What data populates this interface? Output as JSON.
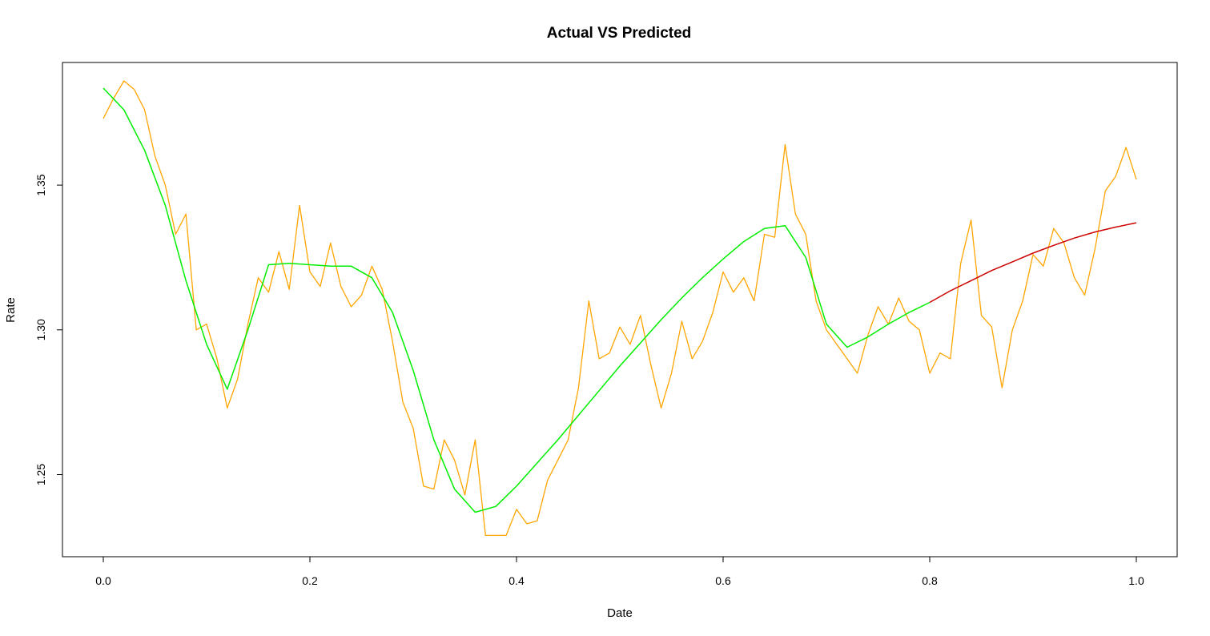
{
  "chart_data": {
    "type": "line",
    "title": "Actual VS Predicted",
    "xlabel": "Date",
    "ylabel": "Rate",
    "xlim": [
      0.0,
      1.0
    ],
    "ylim": [
      1.228,
      1.386
    ],
    "x_ticks": [
      "0.0",
      "0.2",
      "0.4",
      "0.6",
      "0.8",
      "1.0"
    ],
    "y_ticks": [
      "1.25",
      "1.30",
      "1.35"
    ],
    "grid": false,
    "legend": "none",
    "colors": {
      "actual": "#FFA500",
      "fitted": "#00EE00",
      "predicted": "#CC0000"
    },
    "series": [
      {
        "role": "actual",
        "x": [
          0.0,
          0.01,
          0.02,
          0.03,
          0.04,
          0.05,
          0.06,
          0.07,
          0.08,
          0.09,
          0.1,
          0.11,
          0.12,
          0.13,
          0.14,
          0.15,
          0.16,
          0.17,
          0.18,
          0.19,
          0.2,
          0.21,
          0.22,
          0.23,
          0.24,
          0.25,
          0.26,
          0.27,
          0.28,
          0.29,
          0.3,
          0.31,
          0.32,
          0.33,
          0.34,
          0.35,
          0.36,
          0.37,
          0.38,
          0.39,
          0.4,
          0.41,
          0.42,
          0.43,
          0.44,
          0.45,
          0.46,
          0.47,
          0.48,
          0.49,
          0.5,
          0.51,
          0.52,
          0.53,
          0.54,
          0.55,
          0.56,
          0.57,
          0.58,
          0.59,
          0.6,
          0.61,
          0.62,
          0.63,
          0.64,
          0.65,
          0.66,
          0.67,
          0.68,
          0.69,
          0.7,
          0.71,
          0.72,
          0.73,
          0.74,
          0.75,
          0.76,
          0.77,
          0.78,
          0.79,
          0.8,
          0.81,
          0.82,
          0.83,
          0.84,
          0.85,
          0.86,
          0.87,
          0.88,
          0.89,
          0.9,
          0.91,
          0.92,
          0.93,
          0.94,
          0.95,
          0.96,
          0.97,
          0.98,
          0.99,
          1.0
        ],
        "y": [
          1.373,
          1.38,
          1.386,
          1.383,
          1.376,
          1.36,
          1.35,
          1.333,
          1.34,
          1.3,
          1.302,
          1.29,
          1.273,
          1.283,
          1.302,
          1.318,
          1.313,
          1.327,
          1.314,
          1.343,
          1.32,
          1.315,
          1.33,
          1.315,
          1.308,
          1.312,
          1.322,
          1.314,
          1.296,
          1.275,
          1.266,
          1.246,
          1.245,
          1.262,
          1.255,
          1.243,
          1.262,
          1.229,
          1.229,
          1.229,
          1.238,
          1.233,
          1.234,
          1.248,
          1.255,
          1.262,
          1.28,
          1.31,
          1.29,
          1.292,
          1.301,
          1.295,
          1.305,
          1.288,
          1.273,
          1.285,
          1.303,
          1.29,
          1.296,
          1.306,
          1.32,
          1.313,
          1.318,
          1.31,
          1.333,
          1.332,
          1.364,
          1.34,
          1.333,
          1.31,
          1.3,
          1.295,
          1.29,
          1.285,
          1.298,
          1.308,
          1.302,
          1.311,
          1.303,
          1.3,
          1.285,
          1.292,
          1.29,
          1.323,
          1.338,
          1.305,
          1.301,
          1.28,
          1.3,
          1.31,
          1.326,
          1.322,
          1.335,
          1.33,
          1.318,
          1.312,
          1.328,
          1.348,
          1.353,
          1.363,
          1.352
        ]
      },
      {
        "role": "fitted",
        "x": [
          0.0,
          0.02,
          0.04,
          0.06,
          0.08,
          0.1,
          0.12,
          0.14,
          0.16,
          0.18,
          0.2,
          0.22,
          0.24,
          0.26,
          0.28,
          0.3,
          0.32,
          0.34,
          0.36,
          0.38,
          0.4,
          0.42,
          0.44,
          0.46,
          0.48,
          0.5,
          0.52,
          0.54,
          0.56,
          0.58,
          0.6,
          0.62,
          0.64,
          0.66,
          0.68,
          0.7,
          0.72,
          0.74,
          0.76,
          0.78,
          0.8
        ],
        "y": [
          1.3835,
          1.376,
          1.362,
          1.343,
          1.317,
          1.295,
          1.2795,
          1.3,
          1.3225,
          1.323,
          1.3225,
          1.322,
          1.322,
          1.318,
          1.306,
          1.286,
          1.262,
          1.245,
          1.237,
          1.239,
          1.246,
          1.254,
          1.262,
          1.2705,
          1.279,
          1.2875,
          1.2955,
          1.3035,
          1.311,
          1.318,
          1.3245,
          1.3305,
          1.335,
          1.336,
          1.325,
          1.302,
          1.294,
          1.2975,
          1.302,
          1.306,
          1.3095
        ]
      },
      {
        "role": "predicted",
        "x": [
          0.8,
          0.82,
          0.84,
          0.86,
          0.88,
          0.9,
          0.92,
          0.94,
          0.96,
          0.98,
          1.0
        ],
        "y": [
          1.3095,
          1.3135,
          1.317,
          1.3205,
          1.3235,
          1.3265,
          1.3292,
          1.3317,
          1.3338,
          1.3355,
          1.337
        ]
      }
    ]
  }
}
